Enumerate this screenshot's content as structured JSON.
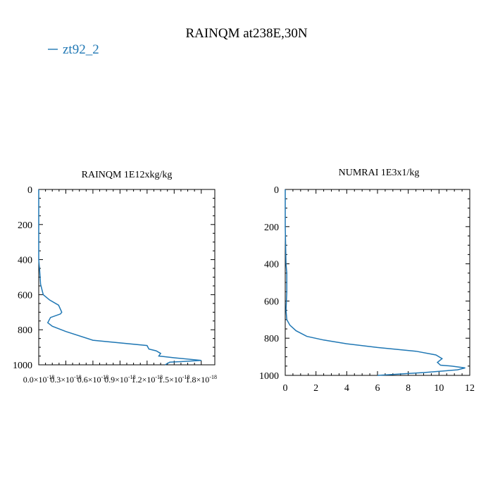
{
  "figure": {
    "title": "RAINQM at238E,30N",
    "legend": {
      "label": "zt92_2",
      "color": "#1f77b4",
      "placement": "top-left"
    }
  },
  "chart_data": [
    {
      "type": "line",
      "title": "RAINQM  1E12xkg/kg",
      "xlabel": "",
      "ylabel": "",
      "xlim": [
        0,
        1.95e-18
      ],
      "ylim": [
        1000,
        0
      ],
      "y_inverted": true,
      "grid": false,
      "x_tick_values": [
        0,
        3e-19,
        6e-19,
        9e-19,
        1.2e-18,
        1.5e-18,
        1.8e-18
      ],
      "x_tick_labels": [
        "0.0×10",
        "0.3×10",
        "0.6×10",
        "0.9×10",
        "1.2×10",
        "1.5×10",
        "1.8×10"
      ],
      "x_tick_exponent": "-18",
      "y_tick_values": [
        0,
        200,
        400,
        600,
        800,
        1000
      ],
      "y_tick_labels": [
        "0",
        "200",
        "400",
        "600",
        "800",
        "1000"
      ],
      "series": [
        {
          "name": "zt92_2",
          "color": "#1f77b4",
          "x": [
            0,
            0,
            0,
            1e-20,
            2e-20,
            5e-20,
            1.2e-19,
            2.2e-19,
            2.55e-19,
            2.4e-19,
            1.3e-19,
            1e-19,
            1.5e-19,
            3e-19,
            6e-19,
            1.2e-18,
            1.22e-18,
            1.3e-18,
            1.35e-18,
            1.33e-18,
            1.5e-18,
            1.8e-18,
            1.45e-18,
            1.4e-18
          ],
          "y": [
            0,
            200,
            400,
            460,
            540,
            600,
            630,
            660,
            700,
            710,
            730,
            760,
            780,
            810,
            860,
            890,
            910,
            920,
            935,
            950,
            960,
            975,
            985,
            1000
          ]
        }
      ]
    },
    {
      "type": "line",
      "title": "NUMRAI  1E3x1/kg",
      "xlabel": "",
      "ylabel": "",
      "xlim": [
        0,
        12
      ],
      "ylim": [
        1000,
        0
      ],
      "y_inverted": true,
      "grid": false,
      "x_tick_values": [
        0,
        2,
        4,
        6,
        8,
        10,
        12
      ],
      "x_tick_labels": [
        "0",
        "2",
        "4",
        "6",
        "8",
        "10",
        "12"
      ],
      "y_tick_values": [
        0,
        200,
        400,
        600,
        800,
        1000
      ],
      "y_tick_labels": [
        "0",
        "200",
        "400",
        "600",
        "800",
        "1000"
      ],
      "series": [
        {
          "name": "zt92_2",
          "color": "#1f77b4",
          "x": [
            0,
            0,
            0.05,
            0.1,
            0.1,
            0.05,
            0.1,
            0.3,
            0.7,
            1.4,
            2.5,
            4,
            6,
            8.5,
            9.8,
            10.2,
            9.9,
            10.1,
            10.8,
            11.7,
            11.2,
            9,
            6
          ],
          "y": [
            0,
            200,
            400,
            450,
            550,
            650,
            700,
            730,
            760,
            790,
            810,
            830,
            850,
            870,
            890,
            910,
            930,
            945,
            950,
            960,
            970,
            985,
            1000
          ]
        }
      ]
    }
  ]
}
